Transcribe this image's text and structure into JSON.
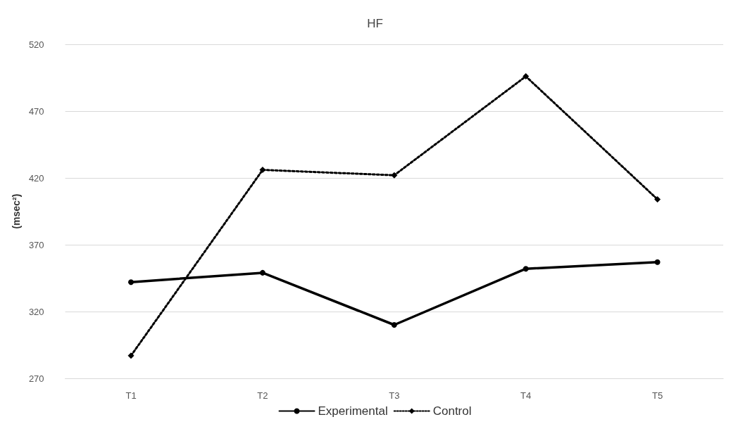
{
  "chart_data": {
    "type": "line",
    "title": "HF",
    "ylabel": "(msec²)",
    "categories": [
      "T1",
      "T2",
      "T3",
      "T4",
      "T5"
    ],
    "series": [
      {
        "name": "Experimental",
        "color": "#000000",
        "marker": "circle",
        "line_style": "solid",
        "values": [
          342,
          349,
          310,
          352,
          357
        ]
      },
      {
        "name": "Control",
        "color": "#000000",
        "marker": "diamond",
        "line_style": "dotted",
        "values": [
          287,
          426,
          422,
          496,
          404
        ]
      }
    ],
    "ylim": [
      270,
      520
    ],
    "yticks": [
      270,
      320,
      370,
      420,
      470,
      520
    ],
    "grid": "y",
    "legend": "bottom"
  }
}
